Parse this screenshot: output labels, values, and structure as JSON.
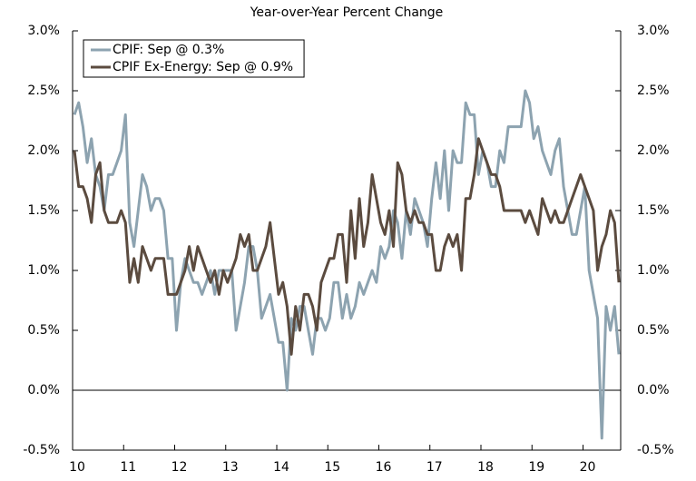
{
  "chart_data": {
    "type": "line",
    "title": "Year-over-Year Percent Change",
    "categories": [
      "10",
      null,
      null,
      null,
      null,
      null,
      null,
      null,
      null,
      null,
      null,
      null,
      "11",
      null,
      null,
      null,
      null,
      null,
      null,
      null,
      null,
      null,
      null,
      null,
      "12",
      null,
      null,
      null,
      null,
      null,
      null,
      null,
      null,
      null,
      null,
      null,
      "13",
      null,
      null,
      null,
      null,
      null,
      null,
      null,
      null,
      null,
      null,
      null,
      "14",
      null,
      null,
      null,
      null,
      null,
      null,
      null,
      null,
      null,
      null,
      null,
      "15",
      null,
      null,
      null,
      null,
      null,
      null,
      null,
      null,
      null,
      null,
      null,
      "16",
      null,
      null,
      null,
      null,
      null,
      null,
      null,
      null,
      null,
      null,
      null,
      "17",
      null,
      null,
      null,
      null,
      null,
      null,
      null,
      null,
      null,
      null,
      null,
      "18",
      null,
      null,
      null,
      null,
      null,
      null,
      null,
      null,
      null,
      null,
      null,
      "19",
      null,
      null,
      null,
      null,
      null,
      null,
      null,
      null,
      null,
      null,
      null,
      "20",
      null,
      null,
      null,
      null,
      null,
      null,
      null,
      null
    ],
    "series": [
      {
        "name": "CPIF: Sep @ 0.3%",
        "color": "#8da3b0",
        "values": [
          2.3,
          2.4,
          2.2,
          1.9,
          2.1,
          1.8,
          1.7,
          1.5,
          1.8,
          1.8,
          1.9,
          2.0,
          2.3,
          1.4,
          1.2,
          1.5,
          1.8,
          1.7,
          1.5,
          1.6,
          1.6,
          1.5,
          1.1,
          1.1,
          0.5,
          0.9,
          1.1,
          1.0,
          0.9,
          0.9,
          0.8,
          0.9,
          1.0,
          0.8,
          1.0,
          1.0,
          1.0,
          1.0,
          0.5,
          0.7,
          0.9,
          1.2,
          1.2,
          1.0,
          0.6,
          0.7,
          0.8,
          0.6,
          0.4,
          0.4,
          0.0,
          0.6,
          0.5,
          0.7,
          0.7,
          0.5,
          0.3,
          0.6,
          0.6,
          0.5,
          0.6,
          0.9,
          0.9,
          0.6,
          0.8,
          0.6,
          0.7,
          0.9,
          0.8,
          0.9,
          1.0,
          0.9,
          1.2,
          1.1,
          1.2,
          1.5,
          1.4,
          1.1,
          1.5,
          1.3,
          1.6,
          1.5,
          1.4,
          1.2,
          1.6,
          1.9,
          1.6,
          2.0,
          1.5,
          2.0,
          1.9,
          1.9,
          2.4,
          2.3,
          2.3,
          1.8,
          2.0,
          1.9,
          1.7,
          1.7,
          2.0,
          1.9,
          2.2,
          2.2,
          2.2,
          2.2,
          2.5,
          2.4,
          2.1,
          2.2,
          2.0,
          1.9,
          1.8,
          2.0,
          2.1,
          1.7,
          1.5,
          1.3,
          1.3,
          1.5,
          1.7,
          1.0,
          0.8,
          0.6,
          -0.4,
          0.7,
          0.5,
          0.7,
          0.3
        ]
      },
      {
        "name": "CPIF Ex-Energy: Sep @ 0.9%",
        "color": "#5b4b3f",
        "values": [
          2.0,
          1.7,
          1.7,
          1.6,
          1.4,
          1.8,
          1.9,
          1.5,
          1.4,
          1.4,
          1.4,
          1.5,
          1.4,
          0.9,
          1.1,
          0.9,
          1.2,
          1.1,
          1.0,
          1.1,
          1.1,
          1.1,
          0.8,
          0.8,
          0.8,
          0.9,
          1.0,
          1.2,
          1.0,
          1.2,
          1.1,
          1.0,
          0.9,
          1.0,
          0.8,
          1.0,
          0.9,
          1.0,
          1.1,
          1.3,
          1.2,
          1.3,
          1.0,
          1.0,
          1.1,
          1.2,
          1.4,
          1.1,
          0.8,
          0.9,
          0.7,
          0.3,
          0.7,
          0.5,
          0.8,
          0.8,
          0.7,
          0.5,
          0.9,
          1.0,
          1.1,
          1.1,
          1.3,
          1.3,
          0.9,
          1.5,
          1.1,
          1.6,
          1.2,
          1.4,
          1.8,
          1.6,
          1.4,
          1.3,
          1.5,
          1.2,
          1.9,
          1.8,
          1.5,
          1.4,
          1.5,
          1.4,
          1.4,
          1.3,
          1.3,
          1.0,
          1.0,
          1.2,
          1.3,
          1.2,
          1.3,
          1.0,
          1.6,
          1.6,
          1.8,
          2.1,
          2.0,
          1.9,
          1.8,
          1.8,
          1.7,
          1.5,
          1.5,
          1.5,
          1.5,
          1.5,
          1.4,
          1.5,
          1.4,
          1.3,
          1.6,
          1.5,
          1.4,
          1.5,
          1.4,
          1.4,
          1.5,
          1.6,
          1.7,
          1.8,
          1.7,
          1.6,
          1.5,
          1.0,
          1.2,
          1.3,
          1.5,
          1.4,
          0.9
        ]
      }
    ],
    "ylim": [
      -0.5,
      3.0
    ],
    "yticks": [
      {
        "value": -0.5,
        "label": "-0.5%"
      },
      {
        "value": 0,
        "label": "0.0%"
      },
      {
        "value": 0.5,
        "label": "0.5%"
      },
      {
        "value": 1.0,
        "label": "1.0%"
      },
      {
        "value": 1.5,
        "label": "1.5%"
      },
      {
        "value": 2.0,
        "label": "2.0%"
      },
      {
        "value": 2.5,
        "label": "2.5%"
      },
      {
        "value": 3.0,
        "label": "3.0%"
      }
    ],
    "y2lim": [
      -0.5,
      3.0
    ],
    "y2ticks": [
      {
        "value": -0.5,
        "label": "-0.5%"
      },
      {
        "value": 0,
        "label": "0.0%"
      },
      {
        "value": 0.5,
        "label": "0.5%"
      },
      {
        "value": 1.0,
        "label": "1.0%"
      },
      {
        "value": 1.5,
        "label": "1.5%"
      },
      {
        "value": 2.0,
        "label": "2.0%"
      },
      {
        "value": 2.5,
        "label": "2.5%"
      },
      {
        "value": 3.0,
        "label": "3.0%"
      }
    ],
    "grid": false,
    "legend": "upper left"
  }
}
